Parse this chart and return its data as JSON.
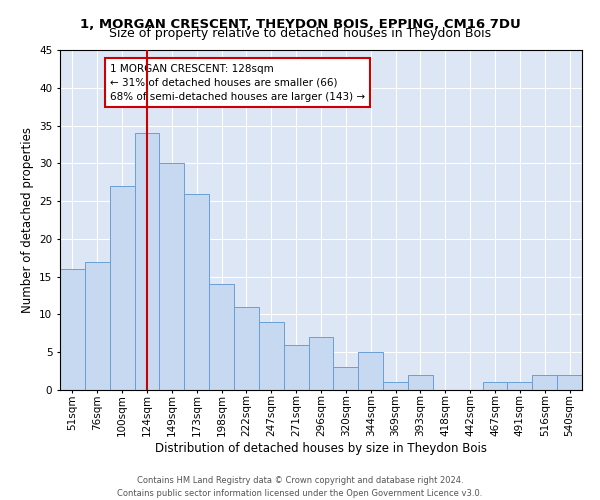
{
  "title": "1, MORGAN CRESCENT, THEYDON BOIS, EPPING, CM16 7DU",
  "subtitle": "Size of property relative to detached houses in Theydon Bois",
  "xlabel": "Distribution of detached houses by size in Theydon Bois",
  "ylabel": "Number of detached properties",
  "bar_labels": [
    "51sqm",
    "76sqm",
    "100sqm",
    "124sqm",
    "149sqm",
    "173sqm",
    "198sqm",
    "222sqm",
    "247sqm",
    "271sqm",
    "296sqm",
    "320sqm",
    "344sqm",
    "369sqm",
    "393sqm",
    "418sqm",
    "442sqm",
    "467sqm",
    "491sqm",
    "516sqm",
    "540sqm"
  ],
  "bar_values": [
    16,
    17,
    27,
    34,
    30,
    26,
    14,
    11,
    9,
    6,
    7,
    3,
    5,
    1,
    2,
    0,
    0,
    1,
    1,
    2,
    2
  ],
  "bar_color": "#c6d9f1",
  "bar_edge_color": "#6a9fd4",
  "vline_index": 3,
  "vline_color": "#cc0000",
  "ylim_max": 45,
  "ytick_step": 5,
  "annotation_text": "1 MORGAN CRESCENT: 128sqm\n← 31% of detached houses are smaller (66)\n68% of semi-detached houses are larger (143) →",
  "annotation_box_color": "#ffffff",
  "annotation_border_color": "#cc0000",
  "footer1": "Contains HM Land Registry data © Crown copyright and database right 2024.",
  "footer2": "Contains public sector information licensed under the Open Government Licence v3.0.",
  "bg_color": "#dce6f5",
  "title_fontsize": 9.5,
  "subtitle_fontsize": 9,
  "axis_label_fontsize": 8.5,
  "tick_fontsize": 7.5,
  "annot_fontsize": 7.5,
  "footer_fontsize": 6
}
